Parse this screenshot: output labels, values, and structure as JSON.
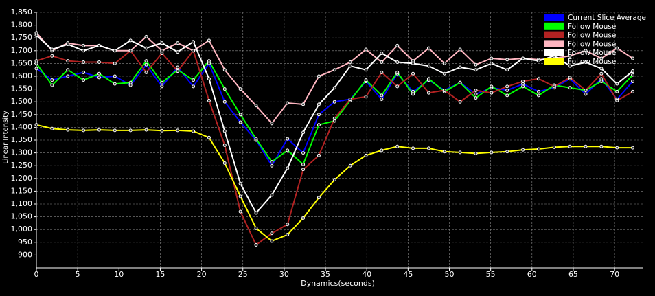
{
  "chart_data": {
    "type": "line",
    "x_label": "Dynamics(seconds)",
    "y_label": "Linear Intensity",
    "xlim": [
      0,
      73.4
    ],
    "ylim": [
      850,
      1850
    ],
    "xticks": [
      0,
      5,
      10,
      15,
      20,
      25,
      30,
      35,
      40,
      45,
      50,
      55,
      60,
      65,
      70
    ],
    "yticks": [
      900,
      950,
      {
        "value": 1000,
        "label": "1,000"
      },
      {
        "value": 1050,
        "label": "1,050"
      },
      {
        "value": 1100,
        "label": "1,100"
      },
      {
        "value": 1150,
        "label": "1,150"
      },
      {
        "value": 1200,
        "label": "1,200"
      },
      {
        "value": 1250,
        "label": "1,250"
      },
      {
        "value": 1300,
        "label": "1,300"
      },
      {
        "value": 1350,
        "label": "1,350"
      },
      {
        "value": 1400,
        "label": "1,400"
      },
      {
        "value": 1450,
        "label": "1,450"
      },
      {
        "value": 1500,
        "label": "1,500"
      },
      {
        "value": 1550,
        "label": "1,550"
      },
      {
        "value": 1600,
        "label": "1,600"
      },
      {
        "value": 1650,
        "label": "1,650"
      },
      {
        "value": 1700,
        "label": "1,700"
      },
      {
        "value": 1750,
        "label": "1,750"
      },
      {
        "value": 1800,
        "label": "1,800"
      },
      {
        "value": 1850,
        "label": "1,850"
      }
    ],
    "grid": true,
    "legend": "upper right",
    "x": [
      0,
      1.9,
      3.8,
      5.7,
      7.6,
      9.5,
      11.4,
      13.3,
      15.2,
      17.1,
      19,
      20.9,
      22.8,
      24.7,
      26.6,
      28.5,
      30.4,
      32.3,
      34.2,
      36.1,
      38,
      39.9,
      41.8,
      43.7,
      45.6,
      47.5,
      49.4,
      51.3,
      53.2,
      55.1,
      57,
      58.9,
      60.8,
      62.7,
      64.6,
      66.5,
      68.4,
      70.3,
      72.2
    ],
    "series": [
      {
        "name": "Current Slice Average",
        "color": "#0000ff",
        "values": [
          1630,
          1585,
          1600,
          1615,
          1595,
          1600,
          1565,
          1645,
          1560,
          1635,
          1560,
          1650,
          1500,
          1420,
          1350,
          1250,
          1355,
          1300,
          1450,
          1500,
          1510,
          1580,
          1510,
          1610,
          1540,
          1585,
          1545,
          1575,
          1530,
          1555,
          1545,
          1570,
          1540,
          1555,
          1590,
          1530,
          1590,
          1510,
          1580
        ]
      },
      {
        "name": "Follow Mouse",
        "color": "#00ff00",
        "values": [
          1650,
          1565,
          1625,
          1585,
          1610,
          1570,
          1575,
          1660,
          1575,
          1625,
          1585,
          1660,
          1550,
          1450,
          1355,
          1265,
          1310,
          1255,
          1410,
          1425,
          1505,
          1585,
          1525,
          1615,
          1530,
          1590,
          1540,
          1575,
          1515,
          1560,
          1525,
          1560,
          1525,
          1565,
          1555,
          1545,
          1580,
          1540,
          1605
        ]
      },
      {
        "name": "Follow Mouse",
        "color": "#b22222",
        "values": [
          1660,
          1680,
          1660,
          1655,
          1655,
          1650,
          1700,
          1615,
          1690,
          1620,
          1700,
          1505,
          1330,
          1070,
          940,
          985,
          1020,
          1235,
          1290,
          1435,
          1510,
          1520,
          1615,
          1560,
          1610,
          1535,
          1545,
          1500,
          1545,
          1535,
          1560,
          1580,
          1590,
          1560,
          1595,
          1545,
          1610,
          1505,
          1540
        ]
      },
      {
        "name": "Follow Mouse",
        "color": "#ffb6c1",
        "values": [
          1770,
          1700,
          1730,
          1720,
          1720,
          1700,
          1700,
          1755,
          1700,
          1730,
          1700,
          1740,
          1625,
          1550,
          1485,
          1415,
          1495,
          1490,
          1600,
          1625,
          1655,
          1705,
          1655,
          1720,
          1660,
          1710,
          1650,
          1705,
          1645,
          1670,
          1665,
          1670,
          1665,
          1670,
          1680,
          1700,
          1670,
          1710,
          1670
        ]
      },
      {
        "name": "Follow Mouse",
        "color": "#ffffff",
        "values": [
          1760,
          1705,
          1725,
          1700,
          1720,
          1700,
          1740,
          1710,
          1730,
          1695,
          1735,
          1590,
          1385,
          1180,
          1065,
          1135,
          1240,
          1380,
          1490,
          1555,
          1640,
          1625,
          1690,
          1655,
          1650,
          1640,
          1610,
          1635,
          1625,
          1650,
          1625,
          1670,
          1660,
          1680,
          1640,
          1655,
          1630,
          1570,
          1620
        ]
      },
      {
        "name": "Follow Mouse",
        "color": "#ffff00",
        "values": [
          1410,
          1395,
          1390,
          1388,
          1390,
          1388,
          1388,
          1390,
          1387,
          1388,
          1385,
          1360,
          1260,
          1130,
          1005,
          955,
          980,
          1045,
          1125,
          1195,
          1250,
          1290,
          1310,
          1325,
          1318,
          1318,
          1305,
          1302,
          1298,
          1302,
          1305,
          1312,
          1315,
          1322,
          1325,
          1325,
          1325,
          1320,
          1320
        ]
      }
    ]
  }
}
